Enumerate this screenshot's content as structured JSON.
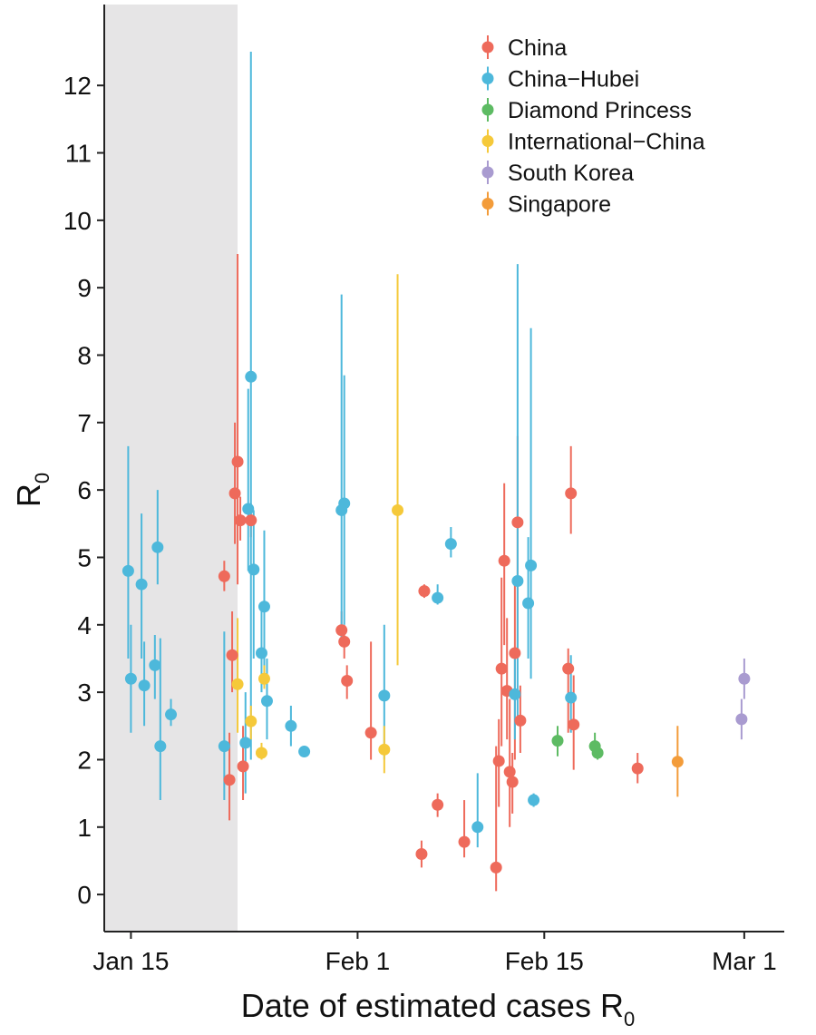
{
  "chart_data": {
    "type": "scatter",
    "xlabel": "Date of estimated cases R",
    "xlabel_sub": "0",
    "ylabel": "R",
    "ylabel_sub": "0",
    "x_ticks": [
      {
        "date": "2020-01-15",
        "label": "Jan 15"
      },
      {
        "date": "2020-02-01",
        "label": "Feb 1"
      },
      {
        "date": "2020-02-15",
        "label": "Feb 15"
      },
      {
        "date": "2020-03-01",
        "label": "Mar 1"
      }
    ],
    "xlim": [
      "2020-01-13",
      "2020-03-04"
    ],
    "ylim": [
      -0.55,
      13.2
    ],
    "y_ticks": [
      0,
      1,
      2,
      3,
      4,
      5,
      6,
      7,
      8,
      9,
      10,
      11,
      12
    ],
    "shaded_region": [
      "2020-01-13",
      "2020-01-23"
    ],
    "legend_position": "top-right",
    "grid": false,
    "series": [
      {
        "name": "China",
        "color": "#EE6A5B",
        "points": [
          {
            "date": "2020-01-22",
            "y": 4.72,
            "lo": 4.5,
            "hi": 4.95
          },
          {
            "date": "2020-01-23",
            "y": 6.42,
            "lo": 4.6,
            "hi": 9.5
          },
          {
            "date": "2020-01-23",
            "y": 5.95,
            "lo": 5.2,
            "hi": 7.0
          },
          {
            "date": "2020-01-23",
            "y": 5.55,
            "lo": 5.25,
            "hi": 5.9
          },
          {
            "date": "2020-01-24",
            "y": 5.55,
            "lo": 5.3,
            "hi": 5.8
          },
          {
            "date": "2020-01-23",
            "y": 3.55,
            "lo": 3.0,
            "hi": 4.2
          },
          {
            "date": "2020-01-23",
            "y": 1.9,
            "lo": 1.4,
            "hi": 2.5
          },
          {
            "date": "2020-01-23",
            "y": 1.7,
            "lo": 1.1,
            "hi": 2.4
          },
          {
            "date": "2020-01-31",
            "y": 3.75,
            "lo": 3.5,
            "hi": 4.0
          },
          {
            "date": "2020-01-31",
            "y": 3.92,
            "lo": 3.7,
            "hi": 4.2
          },
          {
            "date": "2020-01-31",
            "y": 3.17,
            "lo": 2.9,
            "hi": 3.4
          },
          {
            "date": "2020-02-02",
            "y": 2.4,
            "lo": 2.0,
            "hi": 3.75
          },
          {
            "date": "2020-02-06",
            "y": 4.5,
            "lo": 4.4,
            "hi": 4.6
          },
          {
            "date": "2020-02-06",
            "y": 0.6,
            "lo": 0.4,
            "hi": 0.8
          },
          {
            "date": "2020-02-07",
            "y": 1.33,
            "lo": 1.15,
            "hi": 1.5
          },
          {
            "date": "2020-02-09",
            "y": 0.78,
            "lo": 0.55,
            "hi": 1.4
          },
          {
            "date": "2020-02-12",
            "y": 4.95,
            "lo": 3.7,
            "hi": 6.1
          },
          {
            "date": "2020-02-12",
            "y": 3.35,
            "lo": 2.2,
            "hi": 4.7
          },
          {
            "date": "2020-02-12",
            "y": 3.02,
            "lo": 2.3,
            "hi": 4.1
          },
          {
            "date": "2020-02-12",
            "y": 1.98,
            "lo": 1.3,
            "hi": 2.6
          },
          {
            "date": "2020-02-12",
            "y": 1.82,
            "lo": 1.0,
            "hi": 2.9
          },
          {
            "date": "2020-02-12",
            "y": 0.4,
            "lo": 0.05,
            "hi": 2.2
          },
          {
            "date": "2020-02-12",
            "y": 1.67,
            "lo": 1.2,
            "hi": 2.1
          },
          {
            "date": "2020-02-13",
            "y": 5.52,
            "lo": 3.6,
            "hi": 6.8
          },
          {
            "date": "2020-02-13",
            "y": 3.58,
            "lo": 2.0,
            "hi": 4.7
          },
          {
            "date": "2020-02-13",
            "y": 2.58,
            "lo": 2.1,
            "hi": 3.1
          },
          {
            "date": "2020-02-17",
            "y": 5.95,
            "lo": 5.35,
            "hi": 6.65
          },
          {
            "date": "2020-02-17",
            "y": 3.35,
            "lo": 2.4,
            "hi": 3.65
          },
          {
            "date": "2020-02-17",
            "y": 2.52,
            "lo": 1.85,
            "hi": 3.25
          },
          {
            "date": "2020-02-22",
            "y": 1.87,
            "lo": 1.65,
            "hi": 2.1
          }
        ]
      },
      {
        "name": "China−Hubei",
        "color": "#4DB8DB",
        "points": [
          {
            "date": "2020-01-15",
            "y": 3.2,
            "lo": 2.4,
            "hi": 4.0
          },
          {
            "date": "2020-01-15",
            "y": 4.8,
            "lo": 3.5,
            "hi": 6.65
          },
          {
            "date": "2020-01-16",
            "y": 3.1,
            "lo": 2.5,
            "hi": 3.75
          },
          {
            "date": "2020-01-16",
            "y": 4.6,
            "lo": 3.5,
            "hi": 5.65
          },
          {
            "date": "2020-01-17",
            "y": 5.15,
            "lo": 4.6,
            "hi": 6.0
          },
          {
            "date": "2020-01-17",
            "y": 3.4,
            "lo": 2.9,
            "hi": 3.85
          },
          {
            "date": "2020-01-17",
            "y": 2.2,
            "lo": 1.4,
            "hi": 3.8
          },
          {
            "date": "2020-01-18",
            "y": 2.67,
            "lo": 2.5,
            "hi": 2.9
          },
          {
            "date": "2020-01-22",
            "y": 2.2,
            "lo": 1.4,
            "hi": 3.9
          },
          {
            "date": "2020-01-24",
            "y": 7.68,
            "lo": 2.0,
            "hi": 12.5
          },
          {
            "date": "2020-01-24",
            "y": 5.72,
            "lo": 4.8,
            "hi": 7.5
          },
          {
            "date": "2020-01-24",
            "y": 4.82,
            "lo": 3.5,
            "hi": 5.7
          },
          {
            "date": "2020-01-25",
            "y": 4.27,
            "lo": 3.1,
            "hi": 5.4
          },
          {
            "date": "2020-01-25",
            "y": 3.58,
            "lo": 3.0,
            "hi": 4.3
          },
          {
            "date": "2020-01-25",
            "y": 2.87,
            "lo": 2.3,
            "hi": 3.5
          },
          {
            "date": "2020-01-24",
            "y": 2.25,
            "lo": 1.5,
            "hi": 3.0
          },
          {
            "date": "2020-01-27",
            "y": 2.5,
            "lo": 2.2,
            "hi": 2.8
          },
          {
            "date": "2020-01-28",
            "y": 2.12,
            "lo": 2.1,
            "hi": 2.15
          },
          {
            "date": "2020-01-31",
            "y": 5.8,
            "lo": 4.0,
            "hi": 7.7
          },
          {
            "date": "2020-01-31",
            "y": 5.7,
            "lo": 3.8,
            "hi": 8.9
          },
          {
            "date": "2020-02-03",
            "y": 2.95,
            "lo": 2.0,
            "hi": 4.0
          },
          {
            "date": "2020-02-07",
            "y": 4.4,
            "lo": 4.3,
            "hi": 4.6
          },
          {
            "date": "2020-02-08",
            "y": 5.2,
            "lo": 5.0,
            "hi": 5.45
          },
          {
            "date": "2020-02-10",
            "y": 1.0,
            "lo": 0.7,
            "hi": 1.8
          },
          {
            "date": "2020-02-13",
            "y": 4.65,
            "lo": 2.6,
            "hi": 9.35
          },
          {
            "date": "2020-02-14",
            "y": 4.88,
            "lo": 3.2,
            "hi": 8.4
          },
          {
            "date": "2020-02-14",
            "y": 4.32,
            "lo": 3.5,
            "hi": 5.3
          },
          {
            "date": "2020-02-13",
            "y": 2.97,
            "lo": 2.3,
            "hi": 3.6
          },
          {
            "date": "2020-02-14",
            "y": 1.4,
            "lo": 1.3,
            "hi": 1.5
          },
          {
            "date": "2020-02-17",
            "y": 2.92,
            "lo": 2.4,
            "hi": 3.55
          }
        ]
      },
      {
        "name": "Diamond Princess",
        "color": "#5DBB63",
        "points": [
          {
            "date": "2020-02-16",
            "y": 2.28,
            "lo": 2.05,
            "hi": 2.5
          },
          {
            "date": "2020-02-19",
            "y": 2.1,
            "lo": 2.0,
            "hi": 2.2
          },
          {
            "date": "2020-02-19",
            "y": 2.2,
            "lo": 2.05,
            "hi": 2.4
          }
        ]
      },
      {
        "name": "International−China",
        "color": "#F5C93A",
        "points": [
          {
            "date": "2020-01-23",
            "y": 3.12,
            "lo": 2.4,
            "hi": 4.1
          },
          {
            "date": "2020-01-24",
            "y": 2.57,
            "lo": 2.3,
            "hi": 2.8
          },
          {
            "date": "2020-01-25",
            "y": 3.2,
            "lo": 3.05,
            "hi": 3.4
          },
          {
            "date": "2020-01-25",
            "y": 2.1,
            "lo": 2.0,
            "hi": 2.25
          },
          {
            "date": "2020-02-03",
            "y": 2.15,
            "lo": 1.8,
            "hi": 2.5
          },
          {
            "date": "2020-02-04",
            "y": 5.7,
            "lo": 3.4,
            "hi": 9.2
          }
        ]
      },
      {
        "name": "South Korea",
        "color": "#A99BD0",
        "points": [
          {
            "date": "2020-03-01",
            "y": 3.2,
            "lo": 2.9,
            "hi": 3.5
          },
          {
            "date": "2020-03-01",
            "y": 2.6,
            "lo": 2.3,
            "hi": 2.9
          }
        ]
      },
      {
        "name": "Singapore",
        "color": "#F39C3A",
        "points": [
          {
            "date": "2020-02-25",
            "y": 1.97,
            "lo": 1.45,
            "hi": 2.5
          }
        ]
      }
    ]
  }
}
